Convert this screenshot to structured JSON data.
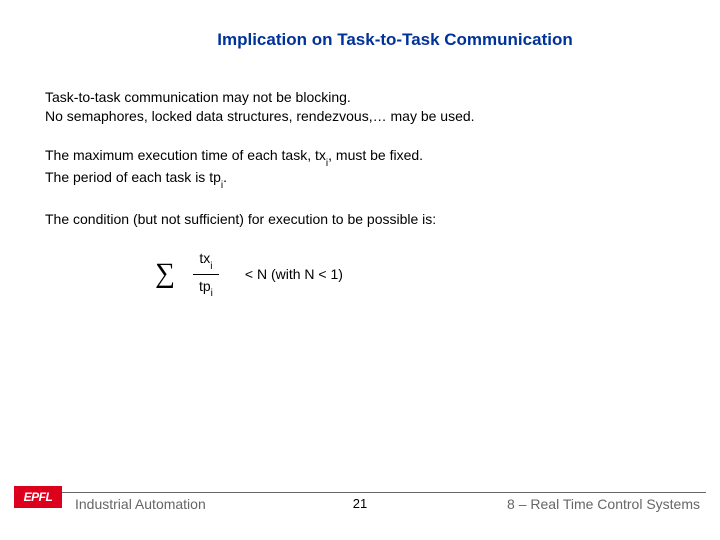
{
  "title": "Implication on Task-to-Task Communication",
  "para1_line1": "Task-to-task communication may not be blocking.",
  "para1_line2": "No semaphores, locked data structures, rendezvous,… may be used.",
  "para2_pre": "The maximum execution time of each task, tx",
  "para2_sub": "i",
  "para2_post": ", must be fixed.",
  "para2b_pre": "The period of each task is tp",
  "para2b_sub": "i",
  "para2b_post": ".",
  "para3": "The condition (but not sufficient) for execution to be possible is:",
  "formula": {
    "sigma": "∑",
    "top_base": "tx",
    "top_sub": "i",
    "bottom_base": "tp",
    "bottom_sub": "i",
    "rest": "< N  (with N < 1)"
  },
  "footer": {
    "logo_text": "EPFL",
    "left": "Industrial Automation",
    "page": "21",
    "right": "8 – Real Time Control Systems"
  },
  "colors": {
    "title": "#003399",
    "logo_bg": "#dc001c",
    "footer_text": "#666666",
    "body_text": "#000000"
  },
  "typography": {
    "title_fontsize": 17,
    "body_fontsize": 14,
    "sigma_fontsize": 28,
    "footer_fontsize": 14
  }
}
